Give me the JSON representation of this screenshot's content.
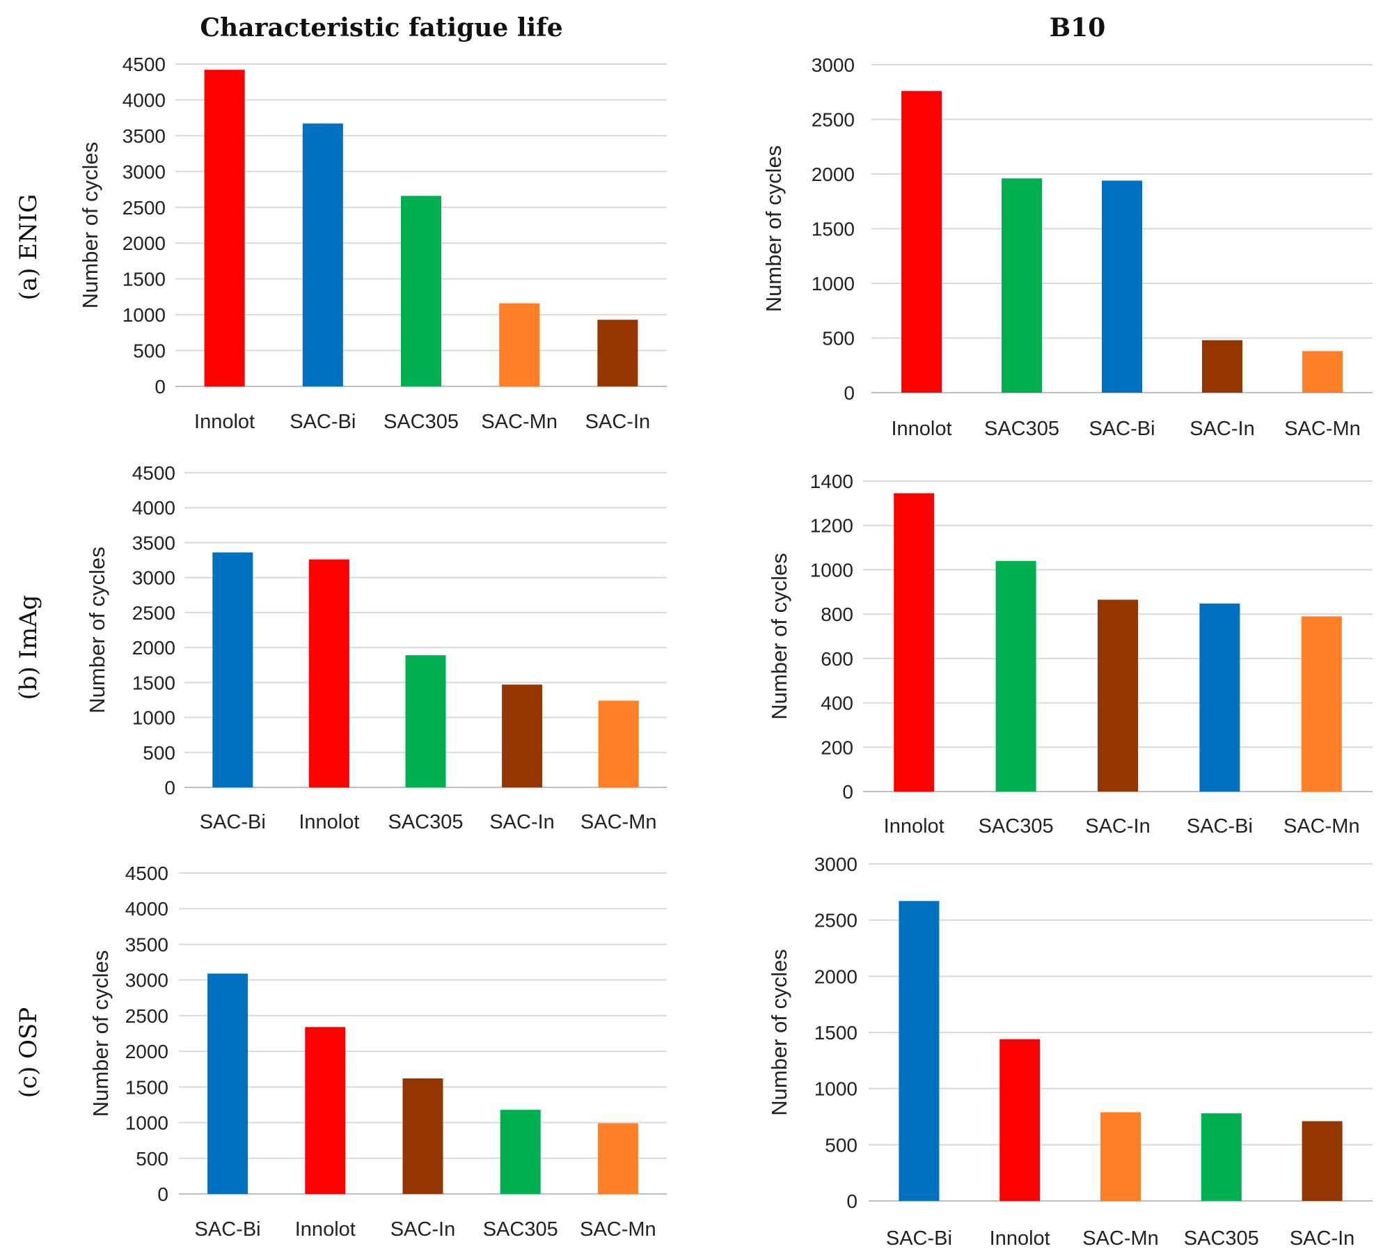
{
  "col_titles": [
    "Characteristic fatigue life",
    "B10"
  ],
  "row_labels": [
    "(a) ENIG",
    "(b) ImAg",
    "(c) OSP"
  ],
  "colors": {
    "Innolot": "#ff0000",
    "SAC-Bi": "#0070c0",
    "SAC305": "#00b050",
    "SAC-Mn": "#ff7f27",
    "SAC-In": "#953500"
  },
  "chart_data": [
    {
      "type": "bar",
      "title": "Characteristic fatigue life",
      "row": "(a) ENIG",
      "ylabel": "Number of cycles",
      "xlabel": "",
      "ylim": [
        0,
        4500
      ],
      "yticks": [
        0,
        500,
        1000,
        1500,
        2000,
        2500,
        3000,
        3500,
        4000,
        4500
      ],
      "categories": [
        "Innolot",
        "SAC-Bi",
        "SAC305",
        "SAC-Mn",
        "SAC-In"
      ],
      "values": [
        4420,
        3670,
        2660,
        1160,
        930
      ],
      "grid": true
    },
    {
      "type": "bar",
      "title": "B10",
      "row": "(a) ENIG",
      "ylabel": "Number of cycles",
      "xlabel": "",
      "ylim": [
        0,
        3000
      ],
      "yticks": [
        0,
        500,
        1000,
        1500,
        2000,
        2500,
        3000
      ],
      "categories": [
        "Innolot",
        "SAC305",
        "SAC-Bi",
        "SAC-In",
        "SAC-Mn"
      ],
      "values": [
        2760,
        1960,
        1940,
        480,
        380
      ],
      "grid": true
    },
    {
      "type": "bar",
      "title": "Characteristic fatigue life",
      "row": "(b) ImAg",
      "ylabel": "Number of cycles",
      "xlabel": "",
      "ylim": [
        0,
        4500
      ],
      "yticks": [
        0,
        500,
        1000,
        1500,
        2000,
        2500,
        3000,
        3500,
        4000,
        4500
      ],
      "categories": [
        "SAC-Bi",
        "Innolot",
        "SAC305",
        "SAC-In",
        "SAC-Mn"
      ],
      "values": [
        3360,
        3260,
        1890,
        1470,
        1240
      ],
      "grid": true
    },
    {
      "type": "bar",
      "title": "B10",
      "row": "(b) ImAg",
      "ylabel": "Number of cycles",
      "xlabel": "",
      "ylim": [
        0,
        1400
      ],
      "yticks": [
        0,
        200,
        400,
        600,
        800,
        1000,
        1200,
        1400
      ],
      "categories": [
        "Innolot",
        "SAC305",
        "SAC-In",
        "SAC-Bi",
        "SAC-Mn"
      ],
      "values": [
        1345,
        1040,
        865,
        848,
        790
      ],
      "grid": true
    },
    {
      "type": "bar",
      "title": "Characteristic fatigue life",
      "row": "(c) OSP",
      "ylabel": "Number of cycles",
      "xlabel": "",
      "ylim": [
        0,
        4500
      ],
      "yticks": [
        0,
        500,
        1000,
        1500,
        2000,
        2500,
        3000,
        3500,
        4000,
        4500
      ],
      "categories": [
        "SAC-Bi",
        "Innolot",
        "SAC-In",
        "SAC305",
        "SAC-Mn"
      ],
      "values": [
        3090,
        2340,
        1620,
        1180,
        990
      ],
      "grid": true
    },
    {
      "type": "bar",
      "title": "B10",
      "row": "(c) OSP",
      "ylabel": "Number of cycles",
      "xlabel": "",
      "ylim": [
        0,
        3000
      ],
      "yticks": [
        0,
        500,
        1000,
        1500,
        2000,
        2500,
        3000
      ],
      "categories": [
        "SAC-Bi",
        "Innolot",
        "SAC-Mn",
        "SAC305",
        "SAC-In"
      ],
      "values": [
        2670,
        1440,
        790,
        780,
        710
      ],
      "grid": true
    }
  ]
}
